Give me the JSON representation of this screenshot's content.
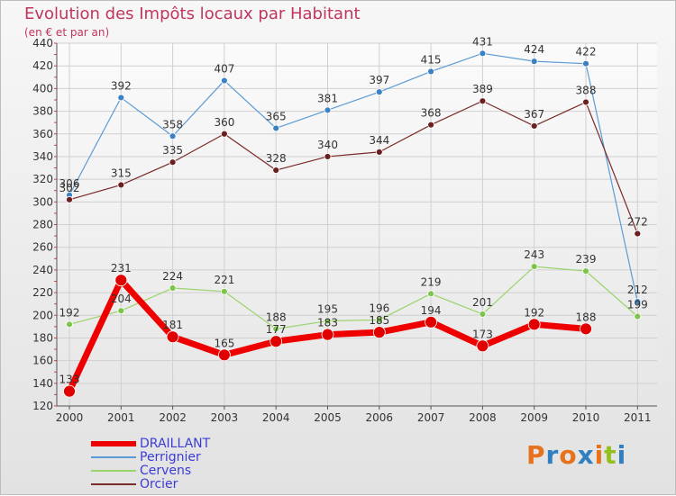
{
  "chart_data": {
    "type": "line",
    "title": "Evolution des Impôts locaux par Habitant",
    "subtitle": "(en € et par an)",
    "categories": [
      "2000",
      "2001",
      "2002",
      "2003",
      "2004",
      "2005",
      "2006",
      "2007",
      "2008",
      "2009",
      "2010",
      "2011"
    ],
    "ylim": [
      120,
      440
    ],
    "yticks": [
      120,
      140,
      160,
      180,
      200,
      220,
      240,
      260,
      280,
      300,
      320,
      340,
      360,
      380,
      400,
      420,
      440
    ],
    "grid": true,
    "legend_position": "bottom-left",
    "series": [
      {
        "name": "Perrignier",
        "color": "#5b9bd5",
        "point_color": "#3b82c4",
        "values": [
          306,
          392,
          358,
          407,
          365,
          381,
          397,
          415,
          431,
          424,
          422,
          212
        ]
      },
      {
        "name": "Orcier",
        "color": "#7a2a2a",
        "point_color": "#6b1f1f",
        "values": [
          302,
          315,
          335,
          360,
          328,
          340,
          344,
          368,
          389,
          367,
          388,
          272
        ]
      },
      {
        "name": "Cervens",
        "color": "#9ad46b",
        "point_color": "#7cc44a",
        "values": [
          192,
          204,
          224,
          221,
          188,
          195,
          196,
          219,
          201,
          243,
          239,
          199
        ]
      },
      {
        "name": "DRAILLANT",
        "color": "#ee0000",
        "point_color": "#e00000",
        "values": [
          133,
          231,
          181,
          165,
          177,
          183,
          185,
          194,
          173,
          192,
          188,
          null
        ]
      }
    ],
    "data_labels": [
      {
        "series": "Perrignier",
        "index": 0,
        "text": "306"
      },
      {
        "series": "Perrignier",
        "index": 1,
        "text": "392"
      },
      {
        "series": "Perrignier",
        "index": 2,
        "text": "358"
      },
      {
        "series": "Perrignier",
        "index": 3,
        "text": "407"
      },
      {
        "series": "Perrignier",
        "index": 4,
        "text": "365"
      },
      {
        "series": "Perrignier",
        "index": 5,
        "text": "381"
      },
      {
        "series": "Perrignier",
        "index": 6,
        "text": "397"
      },
      {
        "series": "Perrignier",
        "index": 7,
        "text": "415"
      },
      {
        "series": "Perrignier",
        "index": 8,
        "text": "431"
      },
      {
        "series": "Perrignier",
        "index": 9,
        "text": "424"
      },
      {
        "series": "Perrignier",
        "index": 10,
        "text": "422"
      },
      {
        "series": "Perrignier",
        "index": 11,
        "text": "212"
      },
      {
        "series": "Orcier",
        "index": 0,
        "text": "302"
      },
      {
        "series": "Orcier",
        "index": 1,
        "text": "315"
      },
      {
        "series": "Orcier",
        "index": 2,
        "text": "335"
      },
      {
        "series": "Orcier",
        "index": 3,
        "text": "360"
      },
      {
        "series": "Orcier",
        "index": 4,
        "text": "328"
      },
      {
        "series": "Orcier",
        "index": 5,
        "text": "340"
      },
      {
        "series": "Orcier",
        "index": 6,
        "text": "344"
      },
      {
        "series": "Orcier",
        "index": 7,
        "text": "368"
      },
      {
        "series": "Orcier",
        "index": 8,
        "text": "389"
      },
      {
        "series": "Orcier",
        "index": 9,
        "text": "367"
      },
      {
        "series": "Orcier",
        "index": 10,
        "text": "388"
      },
      {
        "series": "Orcier",
        "index": 11,
        "text": "272"
      },
      {
        "series": "Cervens",
        "index": 0,
        "text": "192"
      },
      {
        "series": "Cervens",
        "index": 1,
        "text": "204"
      },
      {
        "series": "Cervens",
        "index": 2,
        "text": "224"
      },
      {
        "series": "Cervens",
        "index": 3,
        "text": "221"
      },
      {
        "series": "Cervens",
        "index": 4,
        "text": "188"
      },
      {
        "series": "Cervens",
        "index": 5,
        "text": "195"
      },
      {
        "series": "Cervens",
        "index": 6,
        "text": "196"
      },
      {
        "series": "Cervens",
        "index": 7,
        "text": "219"
      },
      {
        "series": "Cervens",
        "index": 8,
        "text": "201"
      },
      {
        "series": "Cervens",
        "index": 9,
        "text": "243"
      },
      {
        "series": "Cervens",
        "index": 10,
        "text": "239"
      },
      {
        "series": "Cervens",
        "index": 11,
        "text": "199"
      },
      {
        "series": "DRAILLANT",
        "index": 0,
        "text": "133"
      },
      {
        "series": "DRAILLANT",
        "index": 1,
        "text": "231"
      },
      {
        "series": "DRAILLANT",
        "index": 2,
        "text": "181"
      },
      {
        "series": "DRAILLANT",
        "index": 3,
        "text": "165"
      },
      {
        "series": "DRAILLANT",
        "index": 4,
        "text": "177"
      },
      {
        "series": "DRAILLANT",
        "index": 5,
        "text": "183"
      },
      {
        "series": "DRAILLANT",
        "index": 6,
        "text": "185"
      },
      {
        "series": "DRAILLANT",
        "index": 7,
        "text": "194"
      },
      {
        "series": "DRAILLANT",
        "index": 8,
        "text": "173"
      },
      {
        "series": "DRAILLANT",
        "index": 9,
        "text": "192"
      },
      {
        "series": "DRAILLANT",
        "index": 10,
        "text": "188"
      }
    ]
  },
  "legend": {
    "items": [
      {
        "label": "DRAILLANT",
        "color": "#ee0000",
        "text_color": "#3b3bd6"
      },
      {
        "label": "Perrignier",
        "color": "#5b9bd5",
        "text_color": "#3b3bd6"
      },
      {
        "label": "Cervens",
        "color": "#9ad46b",
        "text_color": "#3b3bd6"
      },
      {
        "label": "Orcier",
        "color": "#7a2a2a",
        "text_color": "#3b3bd6"
      }
    ]
  },
  "brand": {
    "name": "Proxiti",
    "letter_colors": [
      "#e8721c",
      "#2f7fc1",
      "#e8721c",
      "#2f7fc1",
      "#e8721c",
      "#93c020",
      "#2f7fc1"
    ]
  }
}
